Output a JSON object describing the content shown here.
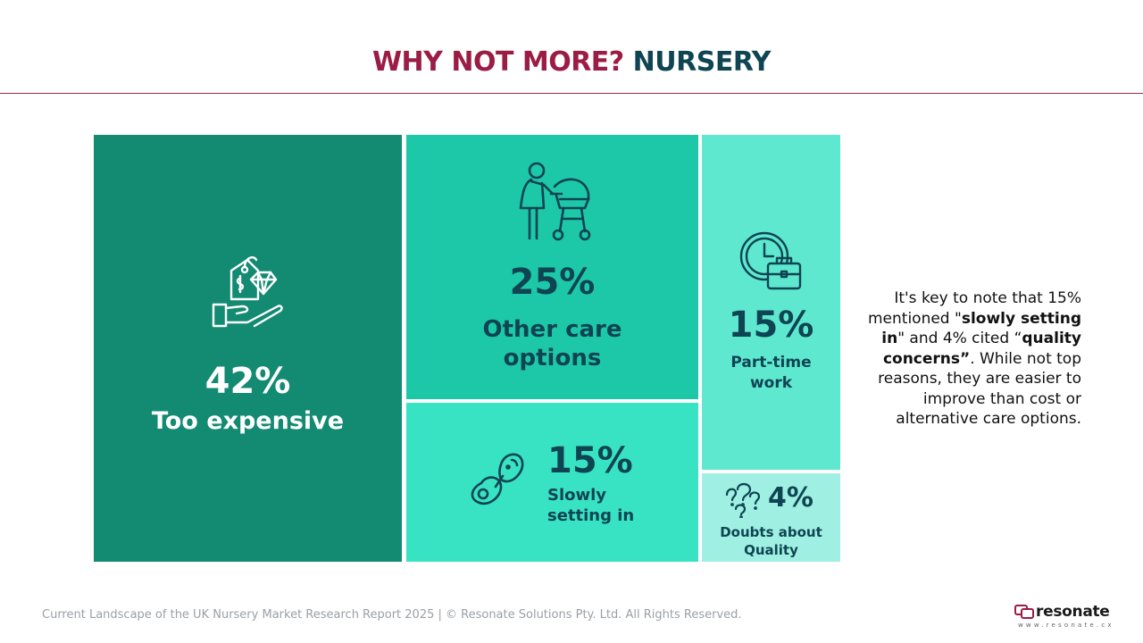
{
  "header": {
    "title_part1": "WHY NOT MORE?",
    "title_part2": "NURSERY",
    "title_colors": {
      "part1": "#9b1c45",
      "part2": "#0f4452"
    }
  },
  "chart_data": {
    "type": "treemap",
    "title": "WHY NOT MORE? NURSERY",
    "items": [
      {
        "label": "Too expensive",
        "value": 42,
        "display": "42%",
        "color": "#138a72",
        "icon": "price-tag-diamond-hand-icon"
      },
      {
        "label": "Other care options",
        "value": 25,
        "display": "25%",
        "color": "#1dc8a8",
        "icon": "caregiver-pram-icon"
      },
      {
        "label": "Slowly setting in",
        "value": 15,
        "display": "15%",
        "color": "#38e3c3",
        "icon": "pacifier-icon"
      },
      {
        "label": "Part-time work",
        "value": 15,
        "display": "15%",
        "color": "#5fe8d0",
        "icon": "clock-briefcase-icon"
      },
      {
        "label": "Doubts about Quality",
        "value": 4,
        "display": "4%",
        "color": "#9ff0e2",
        "icon": "question-marks-icon"
      }
    ]
  },
  "note": {
    "p1": "It's key to note that 15% mentioned \"",
    "b1": "slowly setting in",
    "p2": "\" and 4% cited “",
    "b2": "quality concerns”",
    "p3": ". While not top reasons, they are easier to improve than cost or alternative care options."
  },
  "footer": {
    "text": "Current Landscape of the UK Nursery Market Research Report 2025 | © Resonate Solutions Pty. Ltd. All Rights Reserved."
  },
  "logo": {
    "word": "resonate",
    "url": "www.resonate.cx",
    "icon": "resonate-logo-icon"
  }
}
